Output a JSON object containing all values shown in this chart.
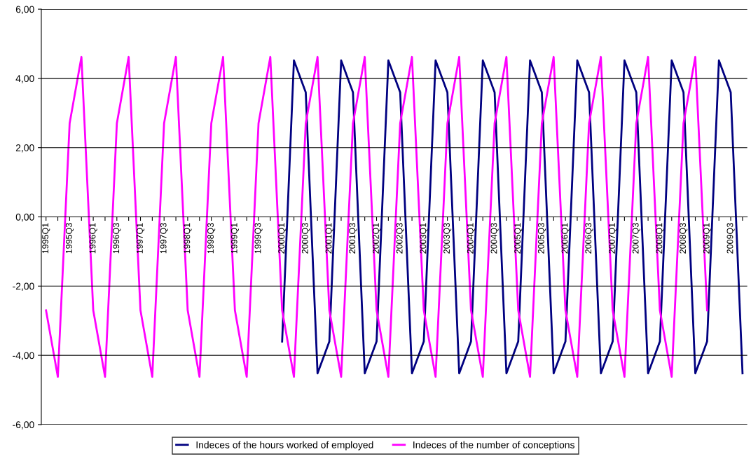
{
  "chart_data": {
    "type": "line",
    "categories": [
      "1995Q1",
      null,
      "1995Q3",
      null,
      "1996Q1",
      null,
      "1996Q3",
      null,
      "1997Q1",
      null,
      "1997Q3",
      null,
      "1998Q1",
      null,
      "1998Q3",
      null,
      "1999Q1",
      null,
      "1999Q3",
      null,
      "2000Q1",
      null,
      "2000Q3",
      null,
      "2001Q1",
      null,
      "2001Q3",
      null,
      "2002Q1",
      null,
      "2002Q3",
      null,
      "2003Q1",
      null,
      "2003Q3",
      null,
      "2004Q1",
      null,
      "2004Q3",
      null,
      "2005Q1",
      null,
      "2005Q3",
      null,
      "2006Q1",
      null,
      "2006Q3",
      null,
      "2007Q1",
      null,
      "2007Q3",
      null,
      "2008Q1",
      null,
      "2008Q3",
      null,
      "2009Q1",
      null,
      "2009Q3",
      null
    ],
    "series": [
      {
        "name": "Indeces of the hours worked of employed",
        "color": "#000080",
        "values": [
          null,
          null,
          null,
          null,
          null,
          null,
          null,
          null,
          null,
          null,
          null,
          null,
          null,
          null,
          null,
          null,
          null,
          null,
          null,
          null,
          -3.6,
          4.52,
          3.6,
          -4.52,
          -3.6,
          4.52,
          3.6,
          -4.52,
          -3.6,
          4.52,
          3.6,
          -4.52,
          -3.6,
          4.52,
          3.6,
          -4.52,
          -3.6,
          4.52,
          3.6,
          -4.52,
          -3.6,
          4.52,
          3.6,
          -4.52,
          -3.6,
          4.52,
          3.6,
          -4.52,
          -3.6,
          4.52,
          3.6,
          -4.52,
          -3.6,
          4.52,
          3.6,
          -4.52,
          -3.6,
          4.52,
          3.6,
          -4.52
        ]
      },
      {
        "name": "Indeces of the number of conceptions",
        "color": "#ff00ff",
        "values": [
          -2.7,
          -4.62,
          2.7,
          4.62,
          -2.7,
          -4.62,
          2.7,
          4.62,
          -2.7,
          -4.62,
          2.7,
          4.62,
          -2.7,
          -4.62,
          2.7,
          4.62,
          -2.7,
          -4.62,
          2.7,
          4.62,
          -2.7,
          -4.62,
          2.7,
          4.62,
          -2.7,
          -4.62,
          2.7,
          4.62,
          -2.7,
          -4.62,
          2.7,
          4.62,
          -2.7,
          -4.62,
          2.7,
          4.62,
          -2.7,
          -4.62,
          2.7,
          4.62,
          -2.7,
          -4.62,
          2.7,
          4.62,
          -2.7,
          -4.62,
          2.7,
          4.62,
          -2.7,
          -4.62,
          2.7,
          4.62,
          -2.7,
          -4.62,
          2.7,
          4.62,
          -2.7,
          null,
          null,
          null
        ]
      }
    ],
    "ylim": [
      -6,
      6
    ],
    "yticks": [
      {
        "value": -6,
        "label": "-6,00"
      },
      {
        "value": -4,
        "label": "-4,00"
      },
      {
        "value": -2,
        "label": "-2,00"
      },
      {
        "value": 0,
        "label": "0,00"
      },
      {
        "value": 2,
        "label": "2,00"
      },
      {
        "value": 4,
        "label": "4,00"
      },
      {
        "value": 6,
        "label": "6,00"
      }
    ],
    "grid": "y",
    "legend": "bottom",
    "marker": "none",
    "line_style": "solid"
  }
}
